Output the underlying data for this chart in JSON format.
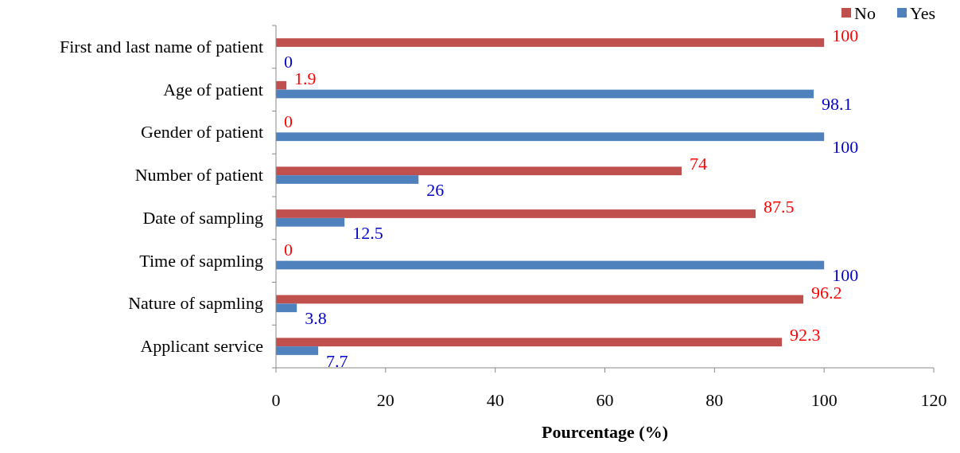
{
  "chart_data": {
    "type": "bar",
    "orientation": "horizontal",
    "xlabel": "Pourcentage (%)",
    "categories": [
      "First and last name of patient",
      "Age of patient",
      "Gender of patient",
      "Number of patient",
      "Date of sampling",
      "Time of sapmling",
      "Nature of sapmling",
      "Applicant service"
    ],
    "series": [
      {
        "name": "No",
        "color": "#c0504d",
        "values": [
          100,
          1.9,
          0,
          74,
          87.5,
          0,
          96.2,
          92.3
        ]
      },
      {
        "name": "Yes",
        "color": "#4f81bd",
        "values": [
          0,
          98.1,
          100,
          26,
          12.5,
          100,
          3.8,
          7.7
        ]
      }
    ],
    "xlim": [
      0,
      120
    ],
    "xticks": [
      0,
      20,
      40,
      60,
      80,
      100,
      120
    ],
    "data_labels": true,
    "legend": "top right",
    "grid": false
  }
}
